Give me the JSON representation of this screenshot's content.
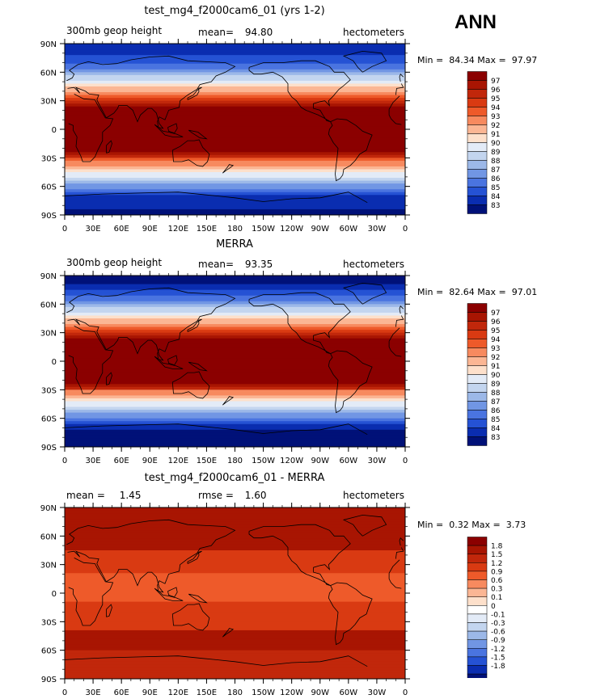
{
  "season": "ANN",
  "panels": [
    {
      "title": "test_mg4_f2000cam6_01 (yrs 1-2)",
      "left": "300mb geop height",
      "mid_label": "mean=",
      "mid_value": "94.80",
      "units": "hectometers",
      "min_label": "Min =",
      "min_value": "84.34",
      "max_label": "Max =",
      "max_value": "97.97",
      "colorbar": [
        "97",
        "96",
        "95",
        "94",
        "93",
        "92",
        "91",
        "90",
        "89",
        "88",
        "87",
        "86",
        "85",
        "84",
        "83"
      ],
      "colors": [
        "#8b0000",
        "#a81502",
        "#c1270b",
        "#d93a12",
        "#ee5a2a",
        "#f78a5f",
        "#fbb694",
        "#fde0cb",
        "#e3ebf7",
        "#c3d5ef",
        "#9cb8e8",
        "#7196e4",
        "#4a74e0",
        "#2552d4",
        "#0a2db0",
        "#001178"
      ]
    },
    {
      "title": "MERRA",
      "left": "300mb geop height",
      "mid_label": "mean=",
      "mid_value": "93.35",
      "units": "hectometers",
      "min_label": "Min =",
      "min_value": "82.64",
      "max_label": "Max =",
      "max_value": "97.01",
      "colorbar": [
        "97",
        "96",
        "95",
        "94",
        "93",
        "92",
        "91",
        "90",
        "89",
        "88",
        "87",
        "86",
        "85",
        "84",
        "83"
      ],
      "colors": [
        "#8b0000",
        "#a81502",
        "#c1270b",
        "#d93a12",
        "#ee5a2a",
        "#f78a5f",
        "#fbb694",
        "#fde0cb",
        "#e3ebf7",
        "#c3d5ef",
        "#9cb8e8",
        "#7196e4",
        "#4a74e0",
        "#2552d4",
        "#0a2db0",
        "#001178"
      ]
    },
    {
      "title": "test_mg4_f2000cam6_01 - MERRA",
      "left": "mean =",
      "left_value": "1.45",
      "mid_label": "rmse =",
      "mid_value": "1.60",
      "units": "hectometers",
      "min_label": "Min =",
      "min_value": "0.32",
      "max_label": "Max =",
      "max_value": "3.73",
      "colorbar": [
        "1.8",
        "1.5",
        "1.2",
        "0.9",
        "0.6",
        "0.3",
        "0.1",
        "0",
        "-0.1",
        "-0.3",
        "-0.6",
        "-0.9",
        "-1.2",
        "-1.5",
        "-1.8"
      ],
      "colors": [
        "#8b0000",
        "#a81502",
        "#c1270b",
        "#d93a12",
        "#ee5a2a",
        "#f78a5f",
        "#fbb694",
        "#fde0cb",
        "#ffffff",
        "#e3ebf7",
        "#c3d5ef",
        "#9cb8e8",
        "#7196e4",
        "#4a74e0",
        "#2552d4",
        "#0a2db0",
        "#001178"
      ]
    }
  ],
  "lat_ticks": [
    "90N",
    "60N",
    "30N",
    "0",
    "30S",
    "60S",
    "90S"
  ],
  "lon_ticks": [
    "0",
    "30E",
    "60E",
    "90E",
    "120E",
    "150E",
    "180",
    "150W",
    "120W",
    "90W",
    "60W",
    "30W",
    "0"
  ]
}
